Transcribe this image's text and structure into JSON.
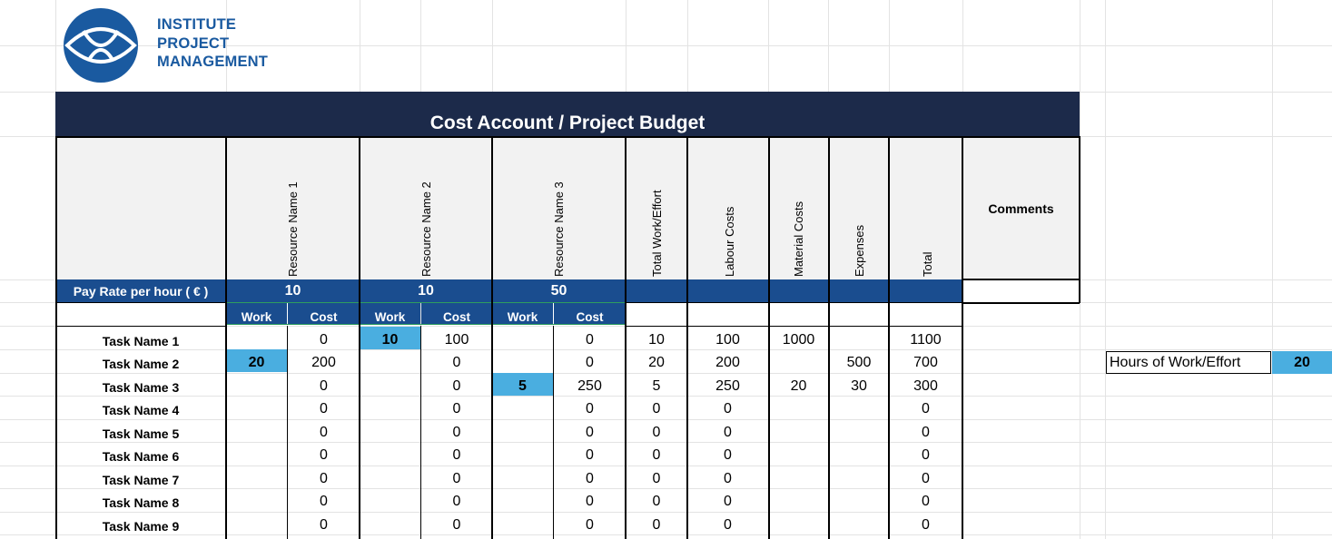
{
  "logo": {
    "line1": "INSTITUTE",
    "line2": "PROJECT",
    "line3": "MANAGEMENT",
    "icon": "eye-in-circle-icon",
    "color": "#1a5aa0"
  },
  "title": "Cost Account / Project Budget",
  "headers": {
    "resource1": "Resource Name 1",
    "resource2": "Resource Name 2",
    "resource3": "Resource Name 3",
    "total_work": "Total Work/Effort",
    "labour": "Labour Costs",
    "material": "Material Costs",
    "expenses": "Expenses",
    "total": "Total",
    "comments": "Comments"
  },
  "pay_rate": {
    "label": "Pay Rate per hour ( € )",
    "r1": "10",
    "r2": "10",
    "r3": "50"
  },
  "sub": {
    "work": "Work",
    "cost": "Cost"
  },
  "tasks": [
    {
      "name": "Task Name 1",
      "w1": "",
      "c1": "0",
      "w2": "10",
      "c2": "100",
      "w3": "",
      "c3": "0",
      "tw": "10",
      "lc": "100",
      "mc": "1000",
      "ex": "",
      "tot": "1100"
    },
    {
      "name": "Task Name 2",
      "w1": "20",
      "c1": "200",
      "w2": "",
      "c2": "0",
      "w3": "",
      "c3": "0",
      "tw": "20",
      "lc": "200",
      "mc": "",
      "ex": "500",
      "tot": "700"
    },
    {
      "name": "Task Name 3",
      "w1": "",
      "c1": "0",
      "w2": "",
      "c2": "0",
      "w3": "5",
      "c3": "250",
      "tw": "5",
      "lc": "250",
      "mc": "20",
      "ex": "30",
      "tot": "300"
    },
    {
      "name": "Task Name 4",
      "w1": "",
      "c1": "0",
      "w2": "",
      "c2": "0",
      "w3": "",
      "c3": "0",
      "tw": "0",
      "lc": "0",
      "mc": "",
      "ex": "",
      "tot": "0"
    },
    {
      "name": "Task Name 5",
      "w1": "",
      "c1": "0",
      "w2": "",
      "c2": "0",
      "w3": "",
      "c3": "0",
      "tw": "0",
      "lc": "0",
      "mc": "",
      "ex": "",
      "tot": "0"
    },
    {
      "name": "Task Name 6",
      "w1": "",
      "c1": "0",
      "w2": "",
      "c2": "0",
      "w3": "",
      "c3": "0",
      "tw": "0",
      "lc": "0",
      "mc": "",
      "ex": "",
      "tot": "0"
    },
    {
      "name": "Task Name 7",
      "w1": "",
      "c1": "0",
      "w2": "",
      "c2": "0",
      "w3": "",
      "c3": "0",
      "tw": "0",
      "lc": "0",
      "mc": "",
      "ex": "",
      "tot": "0"
    },
    {
      "name": "Task Name 8",
      "w1": "",
      "c1": "0",
      "w2": "",
      "c2": "0",
      "w3": "",
      "c3": "0",
      "tw": "0",
      "lc": "0",
      "mc": "",
      "ex": "",
      "tot": "0"
    },
    {
      "name": "Task Name 9",
      "w1": "",
      "c1": "0",
      "w2": "",
      "c2": "0",
      "w3": "",
      "c3": "0",
      "tw": "0",
      "lc": "0",
      "mc": "",
      "ex": "",
      "tot": "0"
    }
  ],
  "side": {
    "label": "Hours of Work/Effort",
    "value": "20"
  },
  "colors": {
    "title_bg": "#1c2a4a",
    "row_bg": "#1a4d8f",
    "highlight": "#4aaee0"
  }
}
